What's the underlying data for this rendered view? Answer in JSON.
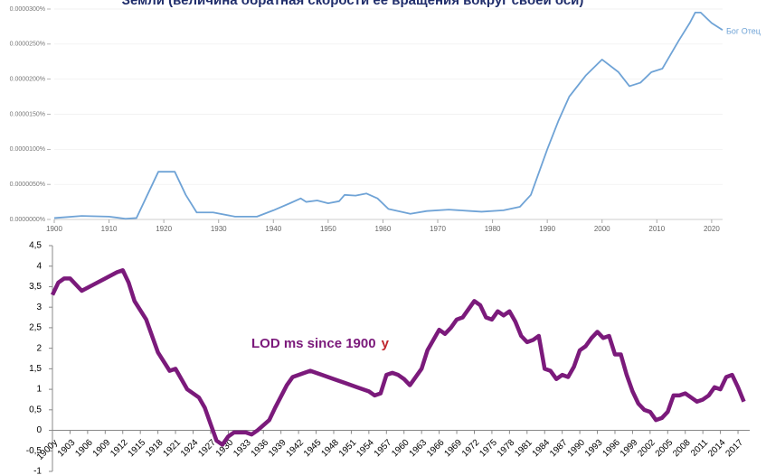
{
  "chart_data": [
    {
      "type": "line",
      "title": "Земли (величина обратная скорости ее вращения вокруг своей оси)",
      "x": [
        1900,
        1905,
        1910,
        1913,
        1915,
        1917,
        1919,
        1922,
        1924,
        1926,
        1929,
        1933,
        1937,
        1940,
        1943,
        1945,
        1946,
        1948,
        1950,
        1952,
        1953,
        1955,
        1957,
        1959,
        1961,
        1965,
        1968,
        1972,
        1976,
        1978,
        1982,
        1985,
        1987,
        1990,
        1992,
        1994,
        1997,
        2000,
        2003,
        2005,
        2007,
        2009,
        2011,
        2014,
        2016,
        2017,
        2018,
        2020,
        2022
      ],
      "series": [
        {
          "name": "Бог Отец",
          "color": "#6fa3d6",
          "values": [
            2e-07,
            5e-07,
            4e-07,
            1e-07,
            2e-07,
            3.5e-06,
            6.8e-06,
            6.8e-06,
            3.5e-06,
            1e-06,
            1e-06,
            4e-07,
            4e-07,
            1.3e-06,
            2.3e-06,
            3e-06,
            2.5e-06,
            2.7e-06,
            2.3e-06,
            2.6e-06,
            3.5e-06,
            3.4e-06,
            3.7e-06,
            3e-06,
            1.5e-06,
            8e-07,
            1.2e-06,
            1.4e-06,
            1.2e-06,
            1.1e-06,
            1.3e-06,
            1.8e-06,
            3.5e-06,
            1e-05,
            1.4e-05,
            1.75e-05,
            2.05e-05,
            2.28e-05,
            2.1e-05,
            1.9e-05,
            1.95e-05,
            2.1e-05,
            2.15e-05,
            2.55e-05,
            2.8e-05,
            2.95e-05,
            2.95e-05,
            2.8e-05,
            2.7e-05
          ]
        }
      ],
      "xlim": [
        1900,
        2022
      ],
      "xticks": [
        1900,
        1910,
        1920,
        1930,
        1940,
        1950,
        1960,
        1970,
        1980,
        1990,
        2000,
        2010,
        2020
      ],
      "ylim": [
        0,
        3e-05
      ],
      "yticks": [
        {
          "value": 0,
          "label": "0.0000000%"
        },
        {
          "value": 5e-06,
          "label": "0.0000050%"
        },
        {
          "value": 1e-05,
          "label": "0.0000100%"
        },
        {
          "value": 1.5e-05,
          "label": "0.0000150%"
        },
        {
          "value": 2e-05,
          "label": "0.0000200%"
        },
        {
          "value": 2.5e-05,
          "label": "0.0000250%"
        },
        {
          "value": 3e-05,
          "label": "0.0000300%"
        }
      ],
      "grid": true
    },
    {
      "type": "line",
      "annotation": "LOD ms   since 1900",
      "annotation_suffix": "y",
      "x": [
        1900,
        1901,
        1902,
        1903,
        1905,
        1907,
        1909,
        1911,
        1912,
        1913,
        1914,
        1916,
        1918,
        1920,
        1921,
        1923,
        1925,
        1926,
        1927,
        1928,
        1929,
        1930,
        1931,
        1933,
        1934,
        1935,
        1937,
        1938,
        1940,
        1941,
        1943,
        1944,
        1946,
        1948,
        1950,
        1952,
        1954,
        1955,
        1956,
        1957,
        1958,
        1959,
        1960,
        1961,
        1963,
        1964,
        1966,
        1967,
        1968,
        1969,
        1970,
        1971,
        1972,
        1973,
        1974,
        1975,
        1976,
        1977,
        1978,
        1979,
        1980,
        1981,
        1982,
        1983,
        1984,
        1985,
        1986,
        1987,
        1988,
        1989,
        1990,
        1991,
        1992,
        1993,
        1994,
        1995,
        1996,
        1997,
        1998,
        1999,
        2000,
        2001,
        2002,
        2003,
        2004,
        2005,
        2006,
        2007,
        2008,
        2009,
        2010,
        2011,
        2012,
        2013,
        2014,
        2015,
        2016,
        2017,
        2018
      ],
      "series": [
        {
          "name": "LOD",
          "color": "#7b1a7b",
          "values": [
            3.3,
            3.6,
            3.7,
            3.7,
            3.4,
            3.55,
            3.7,
            3.85,
            3.9,
            3.6,
            3.15,
            2.7,
            1.9,
            1.45,
            1.5,
            1.0,
            0.8,
            0.55,
            0.15,
            -0.25,
            -0.35,
            -0.15,
            -0.05,
            -0.05,
            -0.1,
            0.0,
            0.25,
            0.55,
            1.1,
            1.3,
            1.4,
            1.45,
            1.35,
            1.25,
            1.15,
            1.05,
            0.95,
            0.85,
            0.9,
            1.35,
            1.4,
            1.35,
            1.25,
            1.1,
            1.5,
            1.95,
            2.45,
            2.35,
            2.5,
            2.7,
            2.75,
            2.95,
            3.15,
            3.05,
            2.75,
            2.7,
            2.9,
            2.8,
            2.9,
            2.65,
            2.3,
            2.15,
            2.2,
            2.3,
            1.5,
            1.45,
            1.25,
            1.35,
            1.3,
            1.55,
            1.95,
            2.05,
            2.25,
            2.4,
            2.25,
            2.3,
            1.85,
            1.85,
            1.35,
            0.95,
            0.65,
            0.5,
            0.45,
            0.25,
            0.3,
            0.45,
            0.85,
            0.85,
            0.9,
            0.8,
            0.7,
            0.75,
            0.85,
            1.05,
            1.0,
            1.3,
            1.35,
            1.05,
            0.7
          ]
        }
      ],
      "xlim": [
        1900,
        2019
      ],
      "xticks": [
        {
          "value": 1900,
          "label": "1900y"
        },
        1903,
        1906,
        1909,
        1912,
        1915,
        1918,
        1921,
        1924,
        1927,
        1930,
        1933,
        1936,
        1939,
        1942,
        1945,
        1948,
        1951,
        1954,
        1957,
        1960,
        1963,
        1966,
        1969,
        1972,
        1975,
        1978,
        1981,
        1984,
        1987,
        1990,
        1993,
        1996,
        1999,
        2002,
        2005,
        2008,
        2011,
        2014,
        2017
      ],
      "ylim": [
        -1,
        4.5
      ],
      "yticks": [
        -1,
        {
          "value": -0.5,
          "label": "-0,5"
        },
        0,
        {
          "value": 0.5,
          "label": "0,5"
        },
        1,
        {
          "value": 1.5,
          "label": "1,5"
        },
        2,
        {
          "value": 2.5,
          "label": "2,5"
        },
        3,
        {
          "value": 3.5,
          "label": "3,5"
        },
        4,
        {
          "value": 4.5,
          "label": "4,5"
        }
      ],
      "grid": false
    }
  ]
}
